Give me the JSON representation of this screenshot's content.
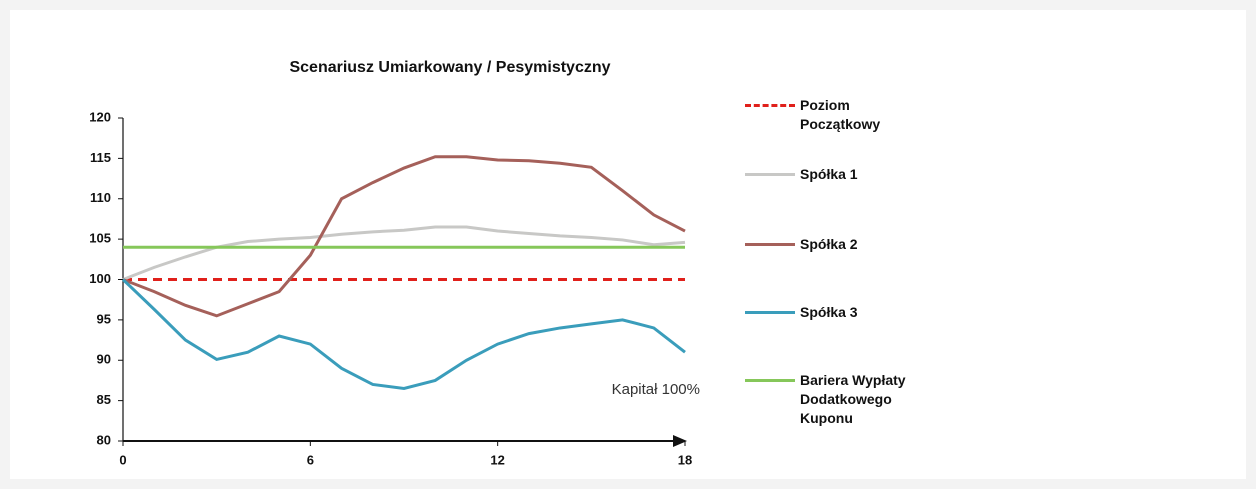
{
  "chart_data": {
    "type": "line",
    "title": "Scenariusz  Umiarkowany / Pesymistyczny",
    "annotation": "Kapitał 100%",
    "x": [
      0,
      1,
      2,
      3,
      4,
      5,
      6,
      7,
      8,
      9,
      10,
      11,
      12,
      13,
      14,
      15,
      16,
      17,
      18
    ],
    "xlim": [
      0,
      18
    ],
    "xticks": [
      0,
      6,
      12,
      18
    ],
    "ylim": [
      80,
      120
    ],
    "yticks": [
      80,
      85,
      90,
      95,
      100,
      105,
      110,
      115,
      120
    ],
    "series": [
      {
        "name": "Poziom Początkowy",
        "color": "#e0201b",
        "dashed": true,
        "values": [
          100,
          100,
          100,
          100,
          100,
          100,
          100,
          100,
          100,
          100,
          100,
          100,
          100,
          100,
          100,
          100,
          100,
          100,
          100
        ]
      },
      {
        "name": "Spółka 1",
        "color": "#c8c8c6",
        "values": [
          100,
          101.5,
          102.8,
          104,
          104.7,
          105,
          105.2,
          105.6,
          105.9,
          106.1,
          106.5,
          106.5,
          106,
          105.7,
          105.4,
          105.2,
          104.9,
          104.3,
          104.6
        ]
      },
      {
        "name": "Spółka 2",
        "color": "#a5605a",
        "values": [
          100,
          98.5,
          96.8,
          95.5,
          97,
          98.5,
          103,
          110,
          112,
          113.8,
          115.2,
          115.2,
          114.8,
          114.7,
          114.4,
          113.9,
          111,
          108,
          106
        ]
      },
      {
        "name": "Spółka 3",
        "color": "#3a9dbb",
        "values": [
          100,
          96.3,
          92.5,
          90.1,
          91,
          93,
          92,
          89,
          87,
          86.5,
          87.5,
          90,
          92,
          93.3,
          94,
          94.5,
          95,
          94,
          91
        ]
      },
      {
        "name": "Bariera Wypłaty Dodatkowego Kuponu",
        "color": "#86c75a",
        "values": [
          104,
          104,
          104,
          104,
          104,
          104,
          104,
          104,
          104,
          104,
          104,
          104,
          104,
          104,
          104,
          104,
          104,
          104,
          104
        ]
      }
    ]
  }
}
